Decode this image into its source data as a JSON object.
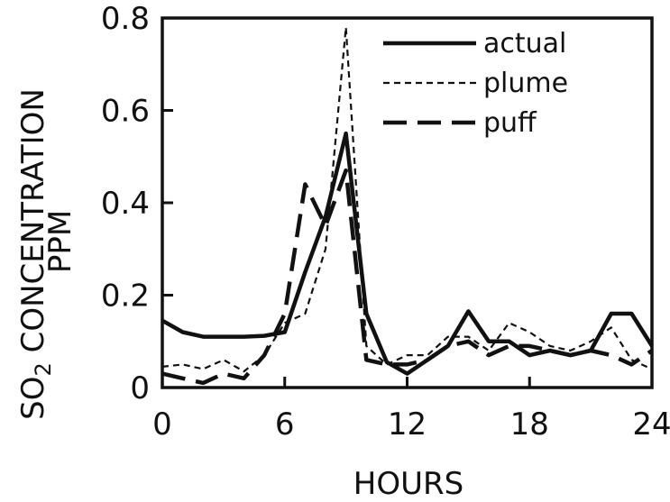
{
  "chart_data": {
    "type": "line",
    "xlabel": "HOURS",
    "ylabel_line1": "SO",
    "ylabel_subscript": "2",
    "ylabel_line1_rest": "CONCENTRATION",
    "ylabel_line2": "PPM",
    "xlim": [
      0,
      24
    ],
    "ylim": [
      0,
      0.8
    ],
    "x_ticks": [
      0,
      6,
      12,
      18,
      24
    ],
    "x_tick_labels": [
      "0",
      "6",
      "12",
      "18",
      "24"
    ],
    "y_ticks": [
      0,
      0.2,
      0.4,
      0.6,
      0.8
    ],
    "y_tick_labels": [
      "0",
      "0.2",
      "0.4",
      "0.6",
      "0.8"
    ],
    "grid": false,
    "legend_position": "top-right",
    "series": [
      {
        "name": "actual",
        "style": "solid",
        "x": [
          0,
          1,
          2,
          3,
          4,
          5,
          6,
          7,
          8,
          9,
          10,
          11,
          12,
          13,
          14,
          15,
          16,
          17,
          18,
          19,
          20,
          21,
          22,
          23,
          24
        ],
        "y": [
          0.145,
          0.12,
          0.11,
          0.11,
          0.11,
          0.112,
          0.12,
          0.25,
          0.37,
          0.55,
          0.16,
          0.055,
          0.03,
          0.06,
          0.09,
          0.165,
          0.1,
          0.1,
          0.07,
          0.08,
          0.07,
          0.08,
          0.16,
          0.16,
          0.09
        ]
      },
      {
        "name": "plume",
        "style": "short-dash",
        "x": [
          0,
          1,
          2,
          3,
          4,
          5,
          6,
          7,
          8,
          9,
          10,
          11,
          12,
          13,
          14,
          15,
          16,
          17,
          18,
          19,
          20,
          21,
          22,
          23,
          24
        ],
        "y": [
          0.045,
          0.05,
          0.04,
          0.06,
          0.035,
          0.07,
          0.14,
          0.16,
          0.3,
          0.78,
          0.09,
          0.05,
          0.07,
          0.07,
          0.11,
          0.11,
          0.08,
          0.14,
          0.12,
          0.09,
          0.08,
          0.1,
          0.13,
          0.06,
          0.04
        ]
      },
      {
        "name": "puff",
        "style": "long-dash",
        "x": [
          0,
          1,
          2,
          3,
          4,
          5,
          6,
          7,
          8,
          9,
          10,
          11,
          12,
          13,
          14,
          15,
          16,
          17,
          18,
          19,
          20,
          21,
          22,
          23,
          24
        ],
        "y": [
          0.03,
          0.02,
          0.01,
          0.03,
          0.02,
          0.07,
          0.16,
          0.44,
          0.35,
          0.47,
          0.06,
          0.05,
          0.05,
          0.06,
          0.09,
          0.1,
          0.07,
          0.09,
          0.09,
          0.08,
          0.07,
          0.08,
          0.07,
          0.05,
          0.08
        ]
      }
    ]
  }
}
